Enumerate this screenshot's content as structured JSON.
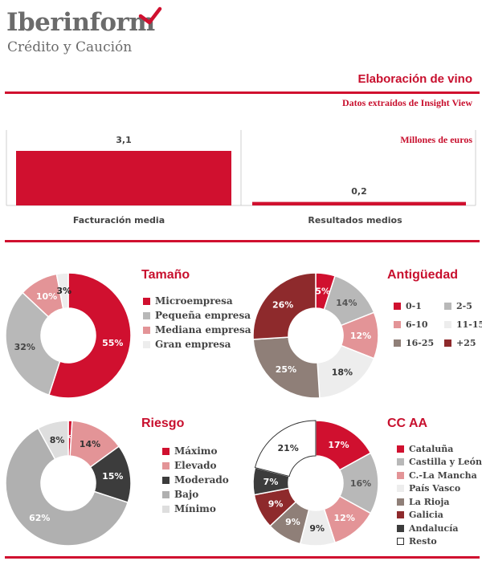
{
  "brand": {
    "name": "Iberinform",
    "tagline": "Crédito y Caución"
  },
  "header": {
    "title": "Elaboración de vino",
    "subtitle": "Datos extraídos de Insight View",
    "units": "Millones de euros"
  },
  "colors": {
    "accent": "#d0102f"
  },
  "chart_data": [
    {
      "id": "bars",
      "type": "bar",
      "categories": [
        "Facturación media",
        "Resultados medios"
      ],
      "values": [
        3.1,
        0.2
      ],
      "value_labels": [
        "3,1",
        "0,2"
      ],
      "ylim": [
        0,
        3.5
      ],
      "color": "#d0102f"
    },
    {
      "id": "tamano",
      "type": "pie",
      "title": "Tamaño",
      "categories": [
        "Microempresa",
        "Pequeña empresa",
        "Mediana empresa",
        "Gran empresa"
      ],
      "values": [
        55,
        32,
        10,
        3
      ],
      "value_labels": [
        "55%",
        "32%",
        "10%",
        "3%"
      ],
      "colors": [
        "#d0102f",
        "#b8b8b8",
        "#e39497",
        "#ededed"
      ],
      "legend": "right"
    },
    {
      "id": "antiguedad",
      "type": "pie",
      "title": "Antigüedad",
      "categories": [
        "0-1",
        "2-5",
        "6-10",
        "11-15",
        "16-25",
        "+25"
      ],
      "values": [
        5,
        14,
        12,
        18,
        25,
        26
      ],
      "value_labels": [
        "5%",
        "14%",
        "12%",
        "18%",
        "25%",
        "26%"
      ],
      "colors": [
        "#d0102f",
        "#b8b8b8",
        "#e39497",
        "#ededed",
        "#8f7f78",
        "#8e2a2c"
      ],
      "legend": "right"
    },
    {
      "id": "riesgo",
      "type": "pie",
      "title": "Riesgo",
      "categories": [
        "Máximo",
        "Elevado",
        "Moderado",
        "Bajo",
        "Mínimo"
      ],
      "values": [
        1,
        14,
        15,
        62,
        8
      ],
      "value_labels": [
        "1%",
        "14%",
        "15%",
        "62%",
        "8%"
      ],
      "colors": [
        "#d0102f",
        "#e39497",
        "#3c3c3c",
        "#b0b0b0",
        "#dedede"
      ],
      "legend": "right"
    },
    {
      "id": "ccaa",
      "type": "pie",
      "title": "CC AA",
      "categories": [
        "Cataluña",
        "Castilla y León",
        "C.-La Mancha",
        "País Vasco",
        "La Rioja",
        "Galicia",
        "Andalucía",
        "Resto"
      ],
      "values": [
        17,
        16,
        12,
        9,
        9,
        9,
        7,
        21
      ],
      "value_labels": [
        "17%",
        "16%",
        "12%",
        "9%",
        "9%",
        "9%",
        "7%",
        "21%"
      ],
      "colors": [
        "#d0102f",
        "#b8b8b8",
        "#e39497",
        "#ededed",
        "#8f7f78",
        "#8e2a2c",
        "#3c3c3c",
        "#ffffff"
      ],
      "legend": "right"
    }
  ]
}
